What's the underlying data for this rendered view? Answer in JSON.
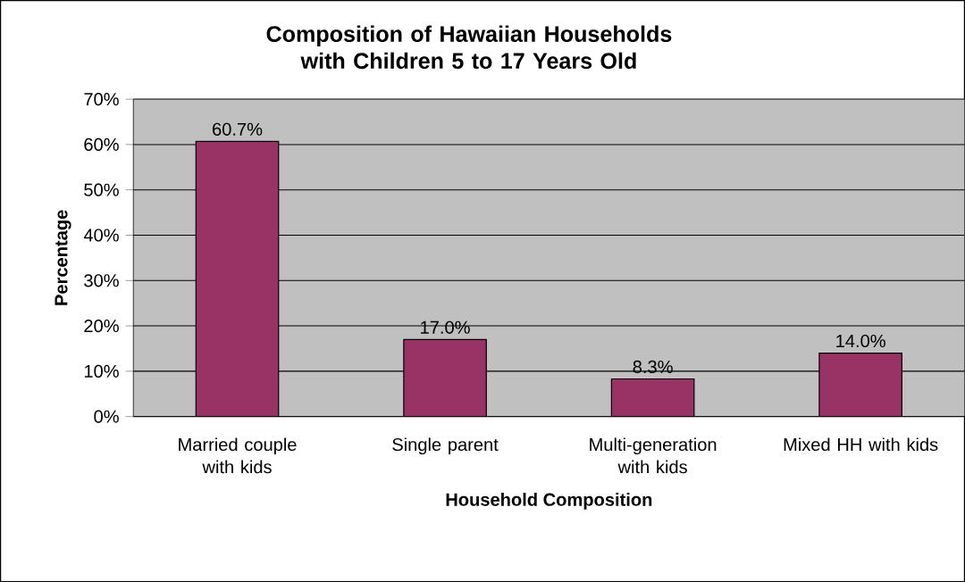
{
  "chart_data": {
    "type": "bar",
    "title": "Composition of Hawaiian Households with Children 5 to 17 Years Old",
    "xlabel": "Household Composition",
    "ylabel": "Percentage",
    "categories": [
      "Married couple with kids",
      "Single parent",
      "Multi-generation with kids",
      "Mixed HH with kids"
    ],
    "values": [
      60.7,
      17.0,
      8.3,
      14.0
    ],
    "value_labels": [
      "60.7%",
      "17.0%",
      "8.3%",
      "14.0%"
    ],
    "color": "#993366",
    "ylim": [
      0,
      70
    ],
    "yticks": [
      {
        "value": 0,
        "label": "0%"
      },
      {
        "value": 10,
        "label": "10%"
      },
      {
        "value": 20,
        "label": "20%"
      },
      {
        "value": 30,
        "label": "30%"
      },
      {
        "value": 40,
        "label": "40%"
      },
      {
        "value": 50,
        "label": "50%"
      },
      {
        "value": 60,
        "label": "60%"
      },
      {
        "value": 70,
        "label": "70%"
      }
    ],
    "grid": "y"
  }
}
